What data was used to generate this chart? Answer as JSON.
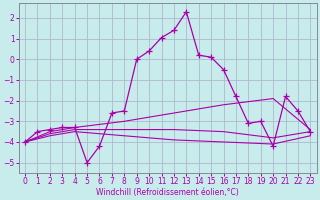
{
  "xlabel": "Windchill (Refroidissement éolien,°C)",
  "background_color": "#c8ecec",
  "grid_color": "#b0b8cc",
  "xlim": [
    -0.5,
    23.5
  ],
  "ylim": [
    -5.5,
    2.7
  ],
  "yticks": [
    -5,
    -4,
    -3,
    -2,
    -1,
    0,
    1,
    2
  ],
  "xticks": [
    0,
    1,
    2,
    3,
    4,
    5,
    6,
    7,
    8,
    9,
    10,
    11,
    12,
    13,
    14,
    15,
    16,
    17,
    18,
    19,
    20,
    21,
    22,
    23
  ],
  "line_color": "#aa00aa",
  "series1": [
    [
      0,
      -4.0
    ],
    [
      1,
      -3.5
    ],
    [
      2,
      -3.4
    ],
    [
      3,
      -3.3
    ],
    [
      4,
      -3.3
    ],
    [
      5,
      -5.0
    ],
    [
      6,
      -4.2
    ],
    [
      7,
      -2.6
    ],
    [
      8,
      -2.5
    ],
    [
      9,
      0.0
    ],
    [
      10,
      0.4
    ],
    [
      11,
      1.05
    ],
    [
      12,
      1.4
    ],
    [
      13,
      2.3
    ],
    [
      14,
      0.2
    ],
    [
      15,
      0.1
    ],
    [
      16,
      -0.5
    ],
    [
      17,
      -1.8
    ],
    [
      18,
      -3.1
    ],
    [
      19,
      -3.0
    ],
    [
      20,
      -4.2
    ],
    [
      21,
      -1.8
    ],
    [
      22,
      -2.5
    ],
    [
      23,
      -3.5
    ]
  ],
  "series2": [
    [
      0,
      -4.0
    ],
    [
      2,
      -3.5
    ],
    [
      4,
      -3.3
    ],
    [
      8,
      -3.0
    ],
    [
      12,
      -2.6
    ],
    [
      16,
      -2.2
    ],
    [
      20,
      -1.9
    ],
    [
      23,
      -3.4
    ]
  ],
  "series3": [
    [
      0,
      -4.0
    ],
    [
      2,
      -3.6
    ],
    [
      4,
      -3.4
    ],
    [
      8,
      -3.4
    ],
    [
      12,
      -3.4
    ],
    [
      16,
      -3.5
    ],
    [
      20,
      -3.8
    ],
    [
      23,
      -3.5
    ]
  ],
  "series4": [
    [
      0,
      -4.0
    ],
    [
      2,
      -3.7
    ],
    [
      4,
      -3.5
    ],
    [
      8,
      -3.7
    ],
    [
      12,
      -3.9
    ],
    [
      16,
      -4.0
    ],
    [
      20,
      -4.1
    ],
    [
      23,
      -3.7
    ]
  ]
}
